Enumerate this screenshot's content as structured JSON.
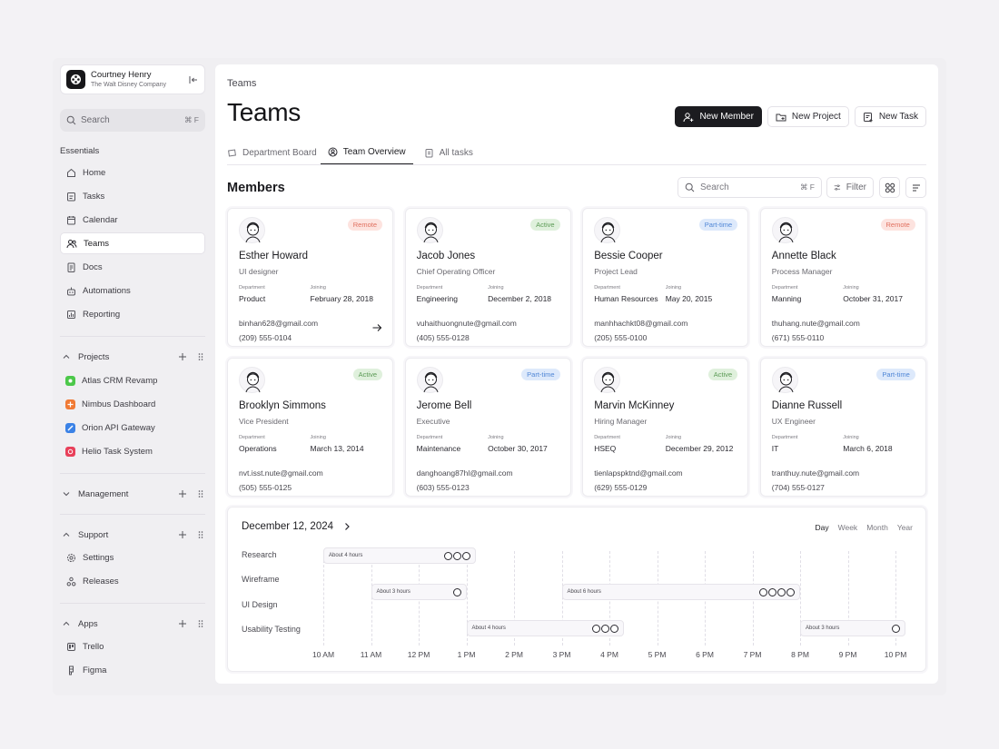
{
  "account": {
    "name": "Courtney Henry",
    "company": "The Walt Disney Company"
  },
  "sidebar": {
    "search_placeholder": "Search",
    "search_shortcut": "⌘ F",
    "essentials_label": "Essentials",
    "items": [
      {
        "label": "Home",
        "icon": "home-icon"
      },
      {
        "label": "Tasks",
        "icon": "tasks-icon"
      },
      {
        "label": "Calendar",
        "icon": "calendar-icon"
      },
      {
        "label": "Teams",
        "icon": "teams-icon"
      },
      {
        "label": "Docs",
        "icon": "docs-icon"
      },
      {
        "label": "Automations",
        "icon": "automations-icon"
      },
      {
        "label": "Reporting",
        "icon": "reporting-icon"
      }
    ],
    "projects_label": "Projects",
    "projects": [
      {
        "label": "Atlas CRM Revamp",
        "color": "#4cc84a"
      },
      {
        "label": "Nimbus Dashboard",
        "color": "#f07a35"
      },
      {
        "label": "Orion API Gateway",
        "color": "#3b82e6"
      },
      {
        "label": "Helio Task System",
        "color": "#e8405a"
      }
    ],
    "management_label": "Management",
    "support_label": "Support",
    "support_items": [
      {
        "label": "Settings",
        "icon": "settings-icon"
      },
      {
        "label": "Releases",
        "icon": "releases-icon"
      }
    ],
    "apps_label": "Apps",
    "apps": [
      {
        "label": "Trello",
        "icon": "trello-icon"
      },
      {
        "label": "Figma",
        "icon": "figma-icon"
      }
    ]
  },
  "header": {
    "breadcrumb": "Teams",
    "title": "Teams",
    "new_member": "New Member",
    "new_project": "New Project",
    "new_task": "New Task"
  },
  "tabs": [
    "Department Board",
    "Team Overview",
    "All tasks"
  ],
  "members": {
    "title": "Members",
    "search_placeholder": "Search",
    "search_shortcut": "⌘ F",
    "filter_label": "Filter",
    "department_key": "Department",
    "joining_key": "Joining",
    "list": [
      {
        "name": "Esther Howard",
        "role": "UI designer",
        "status": "Remote",
        "department": "Product",
        "joining": "February 28, 2018",
        "email": "binhan628@gmail.com",
        "phone": "(209) 555-0104"
      },
      {
        "name": "Jacob Jones",
        "role": "Chief Operating Officer",
        "status": "Active",
        "department": "Engineering",
        "joining": "December 2, 2018",
        "email": "vuhaithuongnute@gmail.com",
        "phone": "(405) 555-0128"
      },
      {
        "name": "Bessie Cooper",
        "role": "Project Lead",
        "status": "Part-time",
        "department": "Human Resources",
        "joining": "May 20, 2015",
        "email": "manhhachkt08@gmail.com",
        "phone": "(205) 555-0100"
      },
      {
        "name": "Annette Black",
        "role": "Process Manager",
        "status": "Remote",
        "department": "Manning",
        "joining": "October 31, 2017",
        "email": "thuhang.nute@gmail.com",
        "phone": "(671) 555-0110"
      },
      {
        "name": "Brooklyn Simmons",
        "role": "Vice President",
        "status": "Active",
        "department": "Operations",
        "joining": "March 13, 2014",
        "email": "nvt.isst.nute@gmail.com",
        "phone": "(505) 555-0125"
      },
      {
        "name": "Jerome Bell",
        "role": "Executive",
        "status": "Part-time",
        "department": "Maintenance",
        "joining": "October 30, 2017",
        "email": "danghoang87hl@gmail.com",
        "phone": "(603) 555-0123"
      },
      {
        "name": "Marvin McKinney",
        "role": "Hiring Manager",
        "status": "Active",
        "department": "HSEQ",
        "joining": "December 29, 2012",
        "email": "tienlapspktnd@gmail.com",
        "phone": "(629) 555-0129"
      },
      {
        "name": "Dianne Russell",
        "role": "UX Engineer",
        "status": "Part-time",
        "department": "IT",
        "joining": "March 6, 2018",
        "email": "tranthuy.nute@gmail.com",
        "phone": "(704) 555-0127"
      }
    ]
  },
  "status_colors": {
    "Remote": {
      "bg": "#fde3df",
      "fg": "#e0705f"
    },
    "Active": {
      "bg": "#dff0dc",
      "fg": "#5b9a55"
    },
    "Part-time": {
      "bg": "#dde9fb",
      "fg": "#4f86d6"
    }
  },
  "schedule": {
    "date": "December 12, 2024",
    "views": [
      "Day",
      "Week",
      "Month",
      "Year"
    ],
    "active_view": "Day",
    "rows": [
      "Research",
      "Wireframe",
      "UI Design",
      "Usability Testing"
    ],
    "hours": [
      "10 AM",
      "11 AM",
      "12 PM",
      "1 PM",
      "2 PM",
      "3 PM",
      "4 PM",
      "5 PM",
      "6 PM",
      "7 PM",
      "8 PM",
      "9 PM",
      "10 PM"
    ],
    "tasks": [
      {
        "row": 0,
        "start": 10.0,
        "end": 13.2,
        "label": "About 4 hours",
        "people": 3
      },
      {
        "row": 1,
        "start": 11.0,
        "end": 13.0,
        "label": "About 3 hours",
        "people": 1
      },
      {
        "row": 1,
        "start": 15.0,
        "end": 20.0,
        "label": "About 6 hours",
        "people": 4
      },
      {
        "row": 2,
        "start": 13.0,
        "end": 16.3,
        "label": "About 4 hours",
        "people": 3
      },
      {
        "row": 2,
        "start": 20.0,
        "end": 22.2,
        "label": "About 3 hours",
        "people": 1
      }
    ]
  }
}
